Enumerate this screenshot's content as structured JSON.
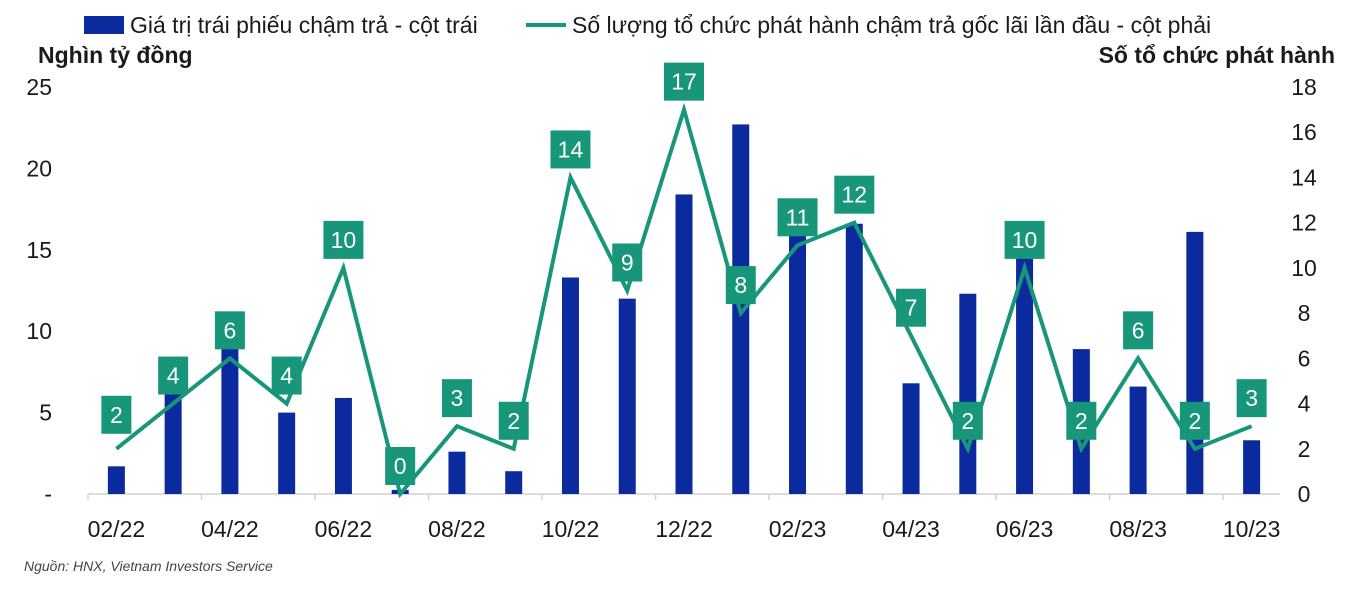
{
  "chart_data": {
    "type": "bar",
    "categories": [
      "02/22",
      "03/22",
      "04/22",
      "05/22",
      "06/22",
      "07/22",
      "08/22",
      "09/22",
      "10/22",
      "11/22",
      "12/22",
      "01/23",
      "02/23",
      "03/23",
      "04/23",
      "05/23",
      "06/23",
      "07/23",
      "08/23",
      "09/23",
      "10/23"
    ],
    "x_tick_labels": [
      "02/22",
      "04/22",
      "06/22",
      "08/22",
      "10/22",
      "12/22",
      "02/23",
      "04/23",
      "06/23",
      "08/23",
      "10/23"
    ],
    "series": [
      {
        "name": "Giá trị trái phiếu chậm trả - cột trái",
        "type": "bar",
        "axis": "left",
        "color": "#0a2a9e",
        "values": [
          1.7,
          6.6,
          9.4,
          5.0,
          5.9,
          0.25,
          2.6,
          1.4,
          13.3,
          12.0,
          18.4,
          22.7,
          16.0,
          16.6,
          6.8,
          12.3,
          14.6,
          8.9,
          6.6,
          16.1,
          3.3
        ]
      },
      {
        "name": "Số lượng tổ chức phát hành chậm trả gốc lãi lần đầu - cột phải",
        "type": "line",
        "axis": "right",
        "color": "#17967a",
        "values": [
          2,
          4,
          6,
          4,
          10,
          0,
          3,
          2,
          14,
          9,
          17,
          8,
          11,
          12,
          7,
          2,
          10,
          2,
          6,
          2,
          3
        ]
      }
    ],
    "ylabel": "Nghìn tỷ đồng",
    "y2label": "Số tổ chức phát hành",
    "ylim": [
      0,
      25
    ],
    "y2lim": [
      0,
      18
    ],
    "y_ticks": [
      "-",
      "5",
      "10",
      "15",
      "20",
      "25"
    ],
    "y2_ticks": [
      "0",
      "2",
      "4",
      "6",
      "8",
      "10",
      "12",
      "14",
      "16",
      "18"
    ],
    "grid": false,
    "legend": "top",
    "source": "Nguồn: HNX, Vietnam Investors Service"
  }
}
